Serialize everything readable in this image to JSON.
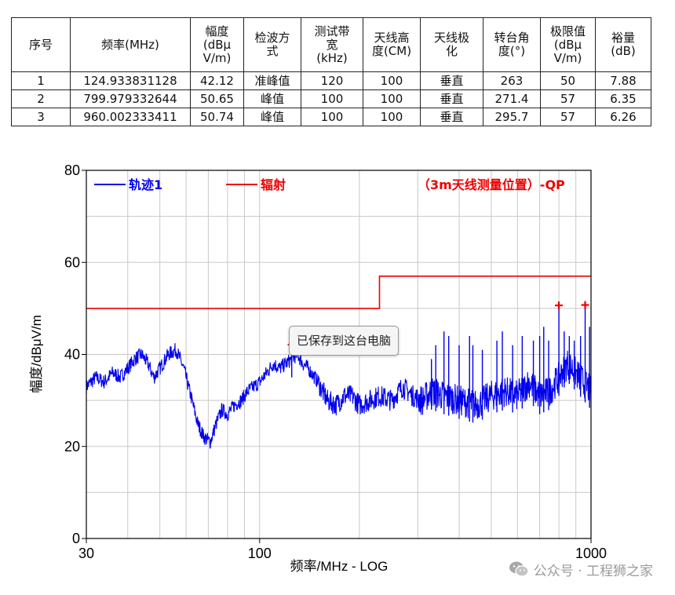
{
  "table": {
    "headers": [
      "序号",
      "频率(MHz)",
      "幅度\n(dBμ\nV/m)",
      "检波方\n式",
      "测试带\n宽\n(kHz)",
      "天线高\n度(CM)",
      "天线极\n化",
      "转台角\n度(°)",
      "极限值\n(dBμ\nV/m)",
      "裕量\n(dB)"
    ],
    "rows": [
      [
        "1",
        "124.933831128",
        "42.12",
        "准峰值",
        "120",
        "100",
        "垂直",
        "263",
        "50",
        "7.88"
      ],
      [
        "2",
        "799.979332644",
        "50.65",
        "峰值",
        "100",
        "100",
        "垂直",
        "271.4",
        "57",
        "6.35"
      ],
      [
        "3",
        "960.002333411",
        "50.74",
        "峰值",
        "100",
        "100",
        "垂直",
        "295.7",
        "57",
        "6.26"
      ]
    ]
  },
  "chart_data": {
    "type": "line",
    "xscale": "log",
    "xlim": [
      30,
      1000
    ],
    "ylim": [
      0,
      80
    ],
    "xticks": [
      30,
      100,
      1000
    ],
    "yticks": [
      0,
      20,
      40,
      60,
      80
    ],
    "xlabel": "频率/MHz - LOG",
    "ylabel": "幅度/dBμV/m",
    "grid": true,
    "legend_position": "top",
    "series": [
      {
        "name": "轨迹1",
        "color": "#0000ee",
        "x": [
          30,
          32,
          34,
          36,
          38,
          40,
          42,
          44,
          46,
          48,
          50,
          53,
          56,
          59,
          62,
          65,
          68,
          71,
          74,
          77,
          80,
          84,
          88,
          92,
          96,
          100,
          105,
          110,
          115,
          120,
          125,
          130,
          135,
          140,
          150,
          160,
          170,
          180,
          190,
          200,
          215,
          230,
          250,
          270,
          290,
          310,
          330,
          360,
          400,
          450,
          500,
          550,
          600,
          650,
          700,
          750,
          800,
          850,
          900,
          950,
          1000
        ],
        "y": [
          33,
          35,
          34,
          36,
          35,
          37,
          39,
          40,
          38,
          35,
          37,
          40,
          41,
          37,
          31,
          25,
          22,
          21,
          25,
          28,
          27,
          29,
          30,
          32,
          33,
          34,
          36,
          38,
          37,
          38,
          39,
          40,
          38,
          37,
          34,
          30,
          29,
          31,
          31,
          29,
          30,
          31,
          30,
          33,
          31,
          30,
          32,
          31,
          30,
          29,
          31,
          32,
          31,
          34,
          31,
          32,
          35,
          38,
          36,
          34,
          32
        ]
      },
      {
        "name": "辐射（3m天线测量位置）-QP",
        "color": "#ee0000",
        "x": [
          30,
          230,
          230,
          1000
        ],
        "y": [
          50,
          50,
          57,
          57
        ]
      }
    ],
    "spikes": [
      {
        "x": 125,
        "y": 45
      },
      {
        "x": 330,
        "y": 39
      },
      {
        "x": 340,
        "y": 42
      },
      {
        "x": 360,
        "y": 45
      },
      {
        "x": 372,
        "y": 44
      },
      {
        "x": 400,
        "y": 42
      },
      {
        "x": 430,
        "y": 44
      },
      {
        "x": 440,
        "y": 42
      },
      {
        "x": 470,
        "y": 41
      },
      {
        "x": 520,
        "y": 43
      },
      {
        "x": 540,
        "y": 45
      },
      {
        "x": 580,
        "y": 42
      },
      {
        "x": 620,
        "y": 44
      },
      {
        "x": 670,
        "y": 43
      },
      {
        "x": 700,
        "y": 44
      },
      {
        "x": 720,
        "y": 46
      },
      {
        "x": 745,
        "y": 43
      },
      {
        "x": 800,
        "y": 50
      },
      {
        "x": 830,
        "y": 45
      },
      {
        "x": 860,
        "y": 44
      },
      {
        "x": 890,
        "y": 43
      },
      {
        "x": 930,
        "y": 44
      },
      {
        "x": 960,
        "y": 50
      },
      {
        "x": 990,
        "y": 46
      }
    ],
    "markers": [
      {
        "x": 124.93,
        "y": 42.12
      },
      {
        "x": 799.98,
        "y": 50.65
      },
      {
        "x": 960.0,
        "y": 50.74
      }
    ]
  },
  "legend": {
    "trace_label": "轨迹1",
    "limit_label_start": "辐射",
    "limit_label_end": "（3m天线测量位置）-QP"
  },
  "tooltip": "已保存到这台电脑",
  "watermark": "公众号 · 工程狮之家"
}
